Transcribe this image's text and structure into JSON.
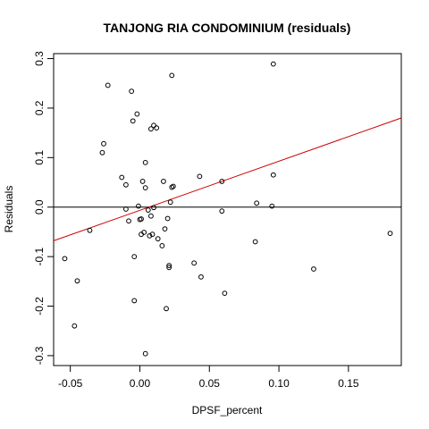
{
  "chart_data": {
    "type": "scatter",
    "title": "TANJONG RIA CONDOMINIUM (residuals)",
    "xlabel": "DPSF_percent",
    "ylabel": "Residuals",
    "xlim": [
      -0.062,
      0.188
    ],
    "ylim": [
      -0.32,
      0.31
    ],
    "x_ticks": [
      -0.05,
      0.0,
      0.05,
      0.1,
      0.15
    ],
    "x_tick_labels": [
      "-0.05",
      "0.00",
      "0.05",
      "0.10",
      "0.15"
    ],
    "y_ticks": [
      -0.3,
      -0.2,
      -0.1,
      0.0,
      0.1,
      0.2,
      0.3
    ],
    "y_tick_labels": [
      "-0.3",
      "-0.2",
      "-0.1",
      "0.0",
      "0.1",
      "0.2",
      "0.3"
    ],
    "grid": false,
    "reference_line": {
      "y": 0.0,
      "color": "#000000"
    },
    "trend_line": {
      "x": [
        -0.062,
        0.188
      ],
      "y": [
        -0.068,
        0.18
      ],
      "color": "#cc0000"
    },
    "points": [
      {
        "x": -0.054,
        "y": -0.104
      },
      {
        "x": -0.047,
        "y": -0.24
      },
      {
        "x": -0.045,
        "y": -0.149
      },
      {
        "x": -0.036,
        "y": -0.047
      },
      {
        "x": -0.027,
        "y": 0.11
      },
      {
        "x": -0.026,
        "y": 0.128
      },
      {
        "x": -0.023,
        "y": 0.246
      },
      {
        "x": -0.013,
        "y": 0.06
      },
      {
        "x": -0.01,
        "y": 0.045
      },
      {
        "x": -0.01,
        "y": -0.004
      },
      {
        "x": -0.008,
        "y": -0.028
      },
      {
        "x": -0.006,
        "y": 0.234
      },
      {
        "x": -0.005,
        "y": 0.174
      },
      {
        "x": -0.004,
        "y": -0.1
      },
      {
        "x": -0.004,
        "y": -0.189
      },
      {
        "x": -0.002,
        "y": 0.188
      },
      {
        "x": -0.001,
        "y": 0.002
      },
      {
        "x": 0.0,
        "y": -0.025
      },
      {
        "x": 0.001,
        "y": -0.024
      },
      {
        "x": 0.001,
        "y": -0.055
      },
      {
        "x": 0.002,
        "y": 0.052
      },
      {
        "x": 0.003,
        "y": -0.051
      },
      {
        "x": 0.004,
        "y": 0.09
      },
      {
        "x": 0.004,
        "y": 0.039
      },
      {
        "x": 0.004,
        "y": -0.296
      },
      {
        "x": 0.006,
        "y": -0.006
      },
      {
        "x": 0.007,
        "y": -0.058
      },
      {
        "x": 0.008,
        "y": 0.158
      },
      {
        "x": 0.008,
        "y": -0.018
      },
      {
        "x": 0.009,
        "y": -0.055
      },
      {
        "x": 0.01,
        "y": -0.001
      },
      {
        "x": 0.01,
        "y": 0.165
      },
      {
        "x": 0.012,
        "y": 0.16
      },
      {
        "x": 0.013,
        "y": -0.064
      },
      {
        "x": 0.016,
        "y": -0.078
      },
      {
        "x": 0.017,
        "y": 0.052
      },
      {
        "x": 0.018,
        "y": -0.044
      },
      {
        "x": 0.019,
        "y": -0.205
      },
      {
        "x": 0.02,
        "y": -0.023
      },
      {
        "x": 0.021,
        "y": -0.118
      },
      {
        "x": 0.021,
        "y": -0.122
      },
      {
        "x": 0.022,
        "y": 0.01
      },
      {
        "x": 0.023,
        "y": 0.266
      },
      {
        "x": 0.023,
        "y": 0.04
      },
      {
        "x": 0.024,
        "y": 0.042
      },
      {
        "x": 0.039,
        "y": -0.113
      },
      {
        "x": 0.043,
        "y": 0.062
      },
      {
        "x": 0.044,
        "y": -0.141
      },
      {
        "x": 0.059,
        "y": 0.052
      },
      {
        "x": 0.059,
        "y": -0.008
      },
      {
        "x": 0.061,
        "y": -0.174
      },
      {
        "x": 0.083,
        "y": -0.07
      },
      {
        "x": 0.084,
        "y": 0.008
      },
      {
        "x": 0.095,
        "y": 0.002
      },
      {
        "x": 0.096,
        "y": 0.289
      },
      {
        "x": 0.096,
        "y": 0.065
      },
      {
        "x": 0.125,
        "y": -0.125
      },
      {
        "x": 0.18,
        "y": -0.053
      }
    ]
  }
}
